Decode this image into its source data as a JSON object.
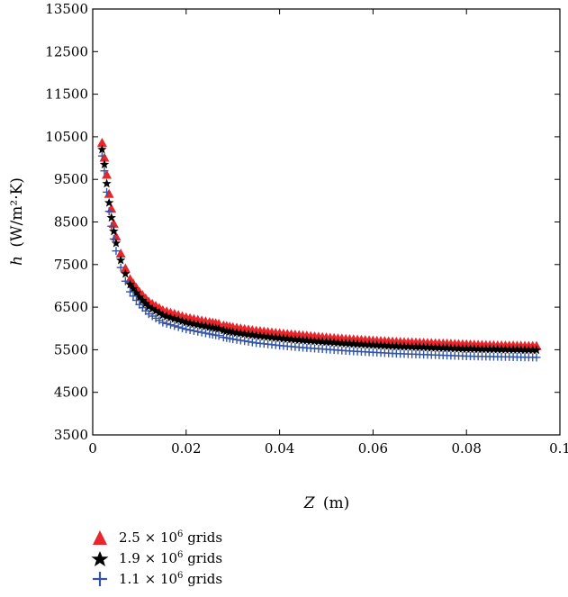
{
  "chart_data": {
    "type": "scatter",
    "xlabel_var": "Z",
    "xlabel_unit": "(m)",
    "ylabel_var": "h",
    "ylabel_unit": "(W/m²·K)",
    "xlim": [
      0,
      0.1
    ],
    "ylim": [
      3500,
      13500
    ],
    "x_ticks": [
      "0",
      "0.02",
      "0.04",
      "0.06",
      "0.08",
      "0.1"
    ],
    "y_ticks": [
      "3500",
      "4500",
      "5500",
      "6500",
      "7500",
      "8500",
      "9500",
      "10500",
      "11500",
      "12500",
      "13500"
    ],
    "grid": false,
    "legend_position": "bottom-left, below plot",
    "series": [
      {
        "name": "2.5 × 10⁶ grids",
        "name_base": "2.5 × 10",
        "name_exp": "6",
        "name_suffix": " grids",
        "marker": "triangle",
        "color": "#e8262b",
        "points": [
          [
            0.002,
            10350
          ],
          [
            0.0025,
            10000
          ],
          [
            0.003,
            9600
          ],
          [
            0.0035,
            9150
          ],
          [
            0.004,
            8800
          ],
          [
            0.0045,
            8450
          ],
          [
            0.005,
            8150
          ],
          [
            0.006,
            7750
          ],
          [
            0.007,
            7400
          ],
          [
            0.008,
            7150
          ],
          [
            0.01,
            6850
          ],
          [
            0.012,
            6620
          ],
          [
            0.015,
            6420
          ],
          [
            0.02,
            6250
          ],
          [
            0.025,
            6140
          ],
          [
            0.027,
            6100
          ],
          [
            0.028,
            6060
          ],
          [
            0.03,
            6020
          ],
          [
            0.035,
            5940
          ],
          [
            0.04,
            5880
          ],
          [
            0.045,
            5830
          ],
          [
            0.05,
            5780
          ],
          [
            0.055,
            5740
          ],
          [
            0.06,
            5710
          ],
          [
            0.065,
            5680
          ],
          [
            0.07,
            5660
          ],
          [
            0.075,
            5640
          ],
          [
            0.08,
            5620
          ],
          [
            0.085,
            5600
          ],
          [
            0.09,
            5590
          ],
          [
            0.095,
            5580
          ]
        ]
      },
      {
        "name": "1.9 × 10⁶ grids",
        "name_base": "1.9 × 10",
        "name_exp": "6",
        "name_suffix": " grids",
        "marker": "star",
        "color": "#000000",
        "points": [
          [
            0.002,
            10200
          ],
          [
            0.0025,
            9850
          ],
          [
            0.003,
            9400
          ],
          [
            0.0035,
            8950
          ],
          [
            0.004,
            8600
          ],
          [
            0.0045,
            8280
          ],
          [
            0.005,
            8000
          ],
          [
            0.006,
            7600
          ],
          [
            0.007,
            7280
          ],
          [
            0.008,
            7030
          ],
          [
            0.01,
            6730
          ],
          [
            0.012,
            6510
          ],
          [
            0.015,
            6310
          ],
          [
            0.02,
            6140
          ],
          [
            0.025,
            6030
          ],
          [
            0.027,
            5990
          ],
          [
            0.028,
            5950
          ],
          [
            0.03,
            5910
          ],
          [
            0.035,
            5830
          ],
          [
            0.04,
            5770
          ],
          [
            0.045,
            5720
          ],
          [
            0.05,
            5680
          ],
          [
            0.055,
            5640
          ],
          [
            0.06,
            5610
          ],
          [
            0.065,
            5580
          ],
          [
            0.07,
            5560
          ],
          [
            0.075,
            5540
          ],
          [
            0.08,
            5520
          ],
          [
            0.085,
            5510
          ],
          [
            0.09,
            5500
          ],
          [
            0.095,
            5490
          ]
        ]
      },
      {
        "name": "1.1 × 10⁶ grids",
        "name_base": "1.1 × 10",
        "name_exp": "6",
        "name_suffix": " grids",
        "marker": "plus",
        "color": "#3455a4",
        "points": [
          [
            0.002,
            10050
          ],
          [
            0.0025,
            9700
          ],
          [
            0.003,
            9200
          ],
          [
            0.0035,
            8750
          ],
          [
            0.004,
            8400
          ],
          [
            0.0045,
            8100
          ],
          [
            0.005,
            7820
          ],
          [
            0.006,
            7430
          ],
          [
            0.007,
            7110
          ],
          [
            0.008,
            6860
          ],
          [
            0.01,
            6560
          ],
          [
            0.012,
            6340
          ],
          [
            0.015,
            6140
          ],
          [
            0.02,
            5980
          ],
          [
            0.025,
            5870
          ],
          [
            0.027,
            5830
          ],
          [
            0.028,
            5790
          ],
          [
            0.03,
            5750
          ],
          [
            0.035,
            5660
          ],
          [
            0.04,
            5600
          ],
          [
            0.045,
            5550
          ],
          [
            0.05,
            5510
          ],
          [
            0.055,
            5470
          ],
          [
            0.06,
            5440
          ],
          [
            0.065,
            5410
          ],
          [
            0.07,
            5390
          ],
          [
            0.075,
            5370
          ],
          [
            0.08,
            5350
          ],
          [
            0.085,
            5340
          ],
          [
            0.09,
            5330
          ],
          [
            0.095,
            5320
          ]
        ]
      }
    ]
  }
}
